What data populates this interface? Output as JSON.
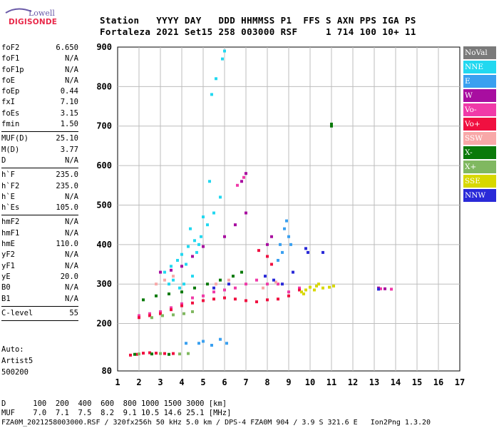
{
  "logo": {
    "line1": "Lowell",
    "line2": "DIGISONDE"
  },
  "header": {
    "labels": "Station   YYYY DAY   DDD HHMMSS P1  FFS S AXN PPS IGA PS",
    "values": "Fortaleza 2021 Set15 258 003000 RSF     1 714 100 10+ 11"
  },
  "params": {
    "group1": [
      {
        "label": "foF2",
        "value": "6.650"
      },
      {
        "label": "foF1",
        "value": "N/A"
      },
      {
        "label": "foF1p",
        "value": "N/A"
      },
      {
        "label": "foE",
        "value": "N/A"
      },
      {
        "label": "foEp",
        "value": "0.44"
      },
      {
        "label": "fxI",
        "value": "7.10"
      },
      {
        "label": "foEs",
        "value": "3.15"
      },
      {
        "label": "fmin",
        "value": "1.50"
      }
    ],
    "group2": [
      {
        "label": "MUF(D)",
        "value": "25.10"
      },
      {
        "label": "M(D)",
        "value": "3.77"
      },
      {
        "label": "D",
        "value": "N/A"
      }
    ],
    "group3": [
      {
        "label": "h`F",
        "value": "235.0"
      },
      {
        "label": "h`F2",
        "value": "235.0"
      },
      {
        "label": "h`E",
        "value": "N/A"
      },
      {
        "label": "h`Es",
        "value": "105.0"
      }
    ],
    "group4": [
      {
        "label": "hmF2",
        "value": "N/A"
      },
      {
        "label": "hmF1",
        "value": "N/A"
      },
      {
        "label": "hmE",
        "value": "110.0"
      },
      {
        "label": "yF2",
        "value": "N/A"
      },
      {
        "label": "yF1",
        "value": "N/A"
      },
      {
        "label": "yE",
        "value": "20.0"
      },
      {
        "label": "B0",
        "value": "N/A"
      },
      {
        "label": "B1",
        "value": "N/A"
      }
    ],
    "clevel": {
      "label": "C-level",
      "value": "55"
    }
  },
  "autoscaling": {
    "line1": "Auto:",
    "line2": "Artist5",
    "line3": "500200"
  },
  "legend": [
    {
      "label": "NoVal",
      "color": "#7a7a7a"
    },
    {
      "label": "NNE",
      "color": "#22d8f0"
    },
    {
      "label": "E",
      "color": "#3aa0f0"
    },
    {
      "label": "W",
      "color": "#a80ea0"
    },
    {
      "label": "Vo-",
      "color": "#f03aa8"
    },
    {
      "label": "Vo+",
      "color": "#f01040"
    },
    {
      "label": "SSW",
      "color": "#f8a8a8"
    },
    {
      "label": "X-",
      "color": "#0a7a0a"
    },
    {
      "label": "X+",
      "color": "#80b860"
    },
    {
      "label": "SSE",
      "color": "#d8d800"
    },
    {
      "label": "NNW",
      "color": "#2a2ad8"
    }
  ],
  "footer": {
    "d_row": "D      100  200  400  600  800 1000 1500 3000 [km]",
    "muf_row": "MUF    7.0  7.1  7.5  8.2  9.1 10.5 14.6 25.1 [MHz]",
    "info_row": "FZA0M_2021258003000.RSF / 320fx256h 50 kHz 5.0 km / DPS-4 FZA0M 904 / 3.9 S 321.6 E   Ion2Png 1.3.20"
  },
  "chart_data": {
    "type": "scatter",
    "title": "",
    "xlabel": "",
    "ylabel": "",
    "xlim": [
      1,
      17
    ],
    "ylim": [
      80,
      900
    ],
    "x_ticks": [
      1,
      2,
      3,
      4,
      5,
      6,
      7,
      8,
      9,
      10,
      11,
      12,
      13,
      14,
      15,
      16,
      17
    ],
    "y_ticks": [
      80,
      200,
      300,
      400,
      500,
      600,
      700,
      800,
      900
    ],
    "grid": true,
    "legend_position": "right",
    "series": [
      {
        "name": "NNE",
        "points": [
          [
            3.2,
            330
          ],
          [
            3.5,
            345
          ],
          [
            3.8,
            360
          ],
          [
            4.0,
            375
          ],
          [
            4.3,
            395
          ],
          [
            4.6,
            410
          ],
          [
            4.9,
            420
          ],
          [
            5.2,
            450
          ],
          [
            5.5,
            480
          ],
          [
            5.8,
            520
          ],
          [
            4.1,
            300
          ],
          [
            4.5,
            320
          ],
          [
            3.9,
            290
          ],
          [
            5.0,
            470
          ],
          [
            5.3,
            560
          ],
          [
            5.4,
            780
          ],
          [
            5.6,
            820
          ],
          [
            5.9,
            870
          ],
          [
            6.0,
            890
          ],
          [
            4.2,
            350
          ],
          [
            4.7,
            380
          ],
          [
            3.6,
            310
          ],
          [
            3.4,
            300
          ],
          [
            4.4,
            440
          ],
          [
            4.8,
            400
          ]
        ]
      },
      {
        "name": "E",
        "points": [
          [
            8.6,
            400
          ],
          [
            8.8,
            440
          ],
          [
            9.0,
            420
          ],
          [
            8.9,
            460
          ],
          [
            8.7,
            380
          ],
          [
            9.1,
            400
          ],
          [
            8.5,
            360
          ],
          [
            4.2,
            150
          ],
          [
            4.8,
            150
          ],
          [
            5.4,
            145
          ],
          [
            6.1,
            150
          ],
          [
            5.0,
            155
          ],
          [
            5.8,
            160
          ]
        ]
      },
      {
        "name": "W",
        "points": [
          [
            3.0,
            330
          ],
          [
            3.5,
            335
          ],
          [
            4.0,
            345
          ],
          [
            4.5,
            370
          ],
          [
            5.0,
            395
          ],
          [
            6.0,
            420
          ],
          [
            6.5,
            450
          ],
          [
            7.0,
            480
          ],
          [
            6.8,
            560
          ],
          [
            7.0,
            580
          ],
          [
            8.0,
            400
          ],
          [
            8.2,
            420
          ],
          [
            13.2,
            290
          ],
          [
            13.5,
            288
          ]
        ]
      },
      {
        "name": "Vo-",
        "points": [
          [
            2.0,
            220
          ],
          [
            2.5,
            225
          ],
          [
            3.0,
            230
          ],
          [
            3.5,
            240
          ],
          [
            4.0,
            250
          ],
          [
            4.5,
            265
          ],
          [
            5.0,
            270
          ],
          [
            5.5,
            280
          ],
          [
            6.0,
            285
          ],
          [
            6.5,
            290
          ],
          [
            7.0,
            300
          ],
          [
            7.5,
            310
          ],
          [
            8.0,
            300
          ],
          [
            8.5,
            300
          ],
          [
            9.0,
            280
          ],
          [
            9.5,
            290
          ],
          [
            6.6,
            550
          ],
          [
            6.9,
            570
          ],
          [
            13.3,
            288
          ],
          [
            13.8,
            287
          ]
        ]
      },
      {
        "name": "Vo+",
        "points": [
          [
            1.6,
            120
          ],
          [
            1.9,
            122
          ],
          [
            2.2,
            125
          ],
          [
            2.5,
            126
          ],
          [
            2.8,
            125
          ],
          [
            3.2,
            124
          ],
          [
            3.6,
            124
          ],
          [
            2.0,
            215
          ],
          [
            2.5,
            220
          ],
          [
            3.0,
            225
          ],
          [
            3.5,
            235
          ],
          [
            4.0,
            245
          ],
          [
            4.5,
            252
          ],
          [
            5.0,
            258
          ],
          [
            5.5,
            262
          ],
          [
            6.0,
            265
          ],
          [
            6.5,
            262
          ],
          [
            7.0,
            258
          ],
          [
            7.5,
            255
          ],
          [
            8.0,
            260
          ],
          [
            8.5,
            262
          ],
          [
            9.0,
            270
          ],
          [
            9.5,
            285
          ],
          [
            7.6,
            385
          ],
          [
            8.0,
            370
          ],
          [
            8.2,
            350
          ]
        ]
      },
      {
        "name": "SSW",
        "points": [
          [
            2.8,
            300
          ],
          [
            3.2,
            310
          ],
          [
            3.6,
            320
          ],
          [
            5.6,
            300
          ],
          [
            6.2,
            310
          ],
          [
            7.8,
            290
          ],
          [
            8.4,
            305
          ]
        ]
      },
      {
        "name": "X-",
        "points": [
          [
            2.2,
            260
          ],
          [
            2.8,
            270
          ],
          [
            3.4,
            275
          ],
          [
            4.0,
            280
          ],
          [
            4.6,
            290
          ],
          [
            5.2,
            300
          ],
          [
            5.8,
            310
          ],
          [
            6.4,
            320
          ],
          [
            6.8,
            330
          ],
          [
            11.0,
            700
          ],
          [
            11.0,
            705
          ],
          [
            1.8,
            122
          ],
          [
            2.6,
            123
          ],
          [
            3.4,
            122
          ]
        ]
      },
      {
        "name": "X+",
        "points": [
          [
            2.6,
            215
          ],
          [
            3.1,
            220
          ],
          [
            3.6,
            222
          ],
          [
            4.1,
            225
          ],
          [
            4.5,
            230
          ],
          [
            2.0,
            123
          ],
          [
            3.0,
            124
          ],
          [
            3.9,
            123
          ],
          [
            4.3,
            124
          ]
        ]
      },
      {
        "name": "SSE",
        "points": [
          [
            9.6,
            280
          ],
          [
            9.8,
            285
          ],
          [
            10.0,
            292
          ],
          [
            10.3,
            295
          ],
          [
            10.6,
            290
          ],
          [
            10.9,
            292
          ],
          [
            11.1,
            295
          ],
          [
            10.2,
            285
          ],
          [
            9.7,
            275
          ],
          [
            10.4,
            300
          ]
        ]
      },
      {
        "name": "NNW",
        "points": [
          [
            7.9,
            320
          ],
          [
            8.3,
            310
          ],
          [
            8.7,
            300
          ],
          [
            9.2,
            330
          ],
          [
            9.8,
            390
          ],
          [
            9.9,
            380
          ],
          [
            10.6,
            380
          ],
          [
            13.2,
            287
          ],
          [
            5.5,
            290
          ],
          [
            6.2,
            300
          ]
        ]
      }
    ]
  }
}
